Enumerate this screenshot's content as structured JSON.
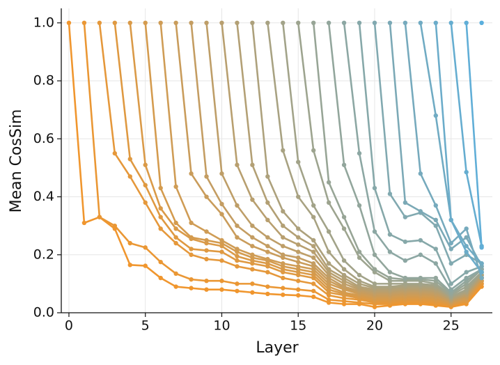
{
  "chart_data": {
    "type": "line",
    "x_label": "Layer",
    "y_label": "Mean CosSim",
    "x": [
      0,
      1,
      2,
      3,
      4,
      5,
      6,
      7,
      8,
      9,
      10,
      11,
      12,
      13,
      14,
      15,
      16,
      17,
      18,
      19,
      20,
      21,
      22,
      23,
      24,
      25,
      26,
      27
    ],
    "xlim": [
      -0.5,
      27.7
    ],
    "ylim": [
      0,
      1.05
    ],
    "xticks": [
      0,
      5,
      10,
      15,
      20,
      25
    ],
    "yticks": [
      {
        "value": 0,
        "label": "0.0"
      },
      0.2,
      0.4,
      0.6,
      0.8,
      {
        "value": 1,
        "label": "1.0"
      }
    ],
    "grid": true,
    "series": [
      {
        "color": "#f0962e",
        "values": [
          1.0,
          0.31,
          0.33,
          0.29,
          0.165,
          0.162,
          0.12,
          0.09,
          0.085,
          0.08,
          0.08,
          0.075,
          0.07,
          0.065,
          0.062,
          0.06,
          0.055,
          0.035,
          0.03,
          0.03,
          0.02,
          0.025,
          0.03,
          0.03,
          0.025,
          0.02,
          0.03,
          0.09
        ]
      },
      {
        "color": "#ea9734",
        "values": [
          null,
          1.0,
          0.33,
          0.3,
          0.24,
          0.225,
          0.175,
          0.135,
          0.115,
          0.11,
          0.11,
          0.1,
          0.1,
          0.09,
          0.085,
          0.08,
          0.075,
          0.045,
          0.04,
          0.035,
          0.03,
          0.03,
          0.035,
          0.035,
          0.03,
          0.025,
          0.035,
          0.1
        ]
      },
      {
        "color": "#e5983b",
        "values": [
          null,
          null,
          1.0,
          0.55,
          0.47,
          0.38,
          0.29,
          0.24,
          0.2,
          0.185,
          0.18,
          0.16,
          0.15,
          0.14,
          0.12,
          0.11,
          0.1,
          0.06,
          0.05,
          0.045,
          0.035,
          0.035,
          0.04,
          0.04,
          0.035,
          0.025,
          0.04,
          0.1
        ]
      },
      {
        "color": "#df9941",
        "values": [
          null,
          null,
          null,
          1.0,
          0.53,
          0.44,
          0.33,
          0.26,
          0.22,
          0.215,
          0.21,
          0.18,
          0.17,
          0.16,
          0.14,
          0.13,
          0.12,
          0.07,
          0.06,
          0.05,
          0.04,
          0.04,
          0.045,
          0.045,
          0.04,
          0.03,
          0.04,
          0.11
        ]
      },
      {
        "color": "#da9a48",
        "values": [
          null,
          null,
          null,
          null,
          1.0,
          0.51,
          0.36,
          0.29,
          0.255,
          0.24,
          0.23,
          0.195,
          0.18,
          0.17,
          0.15,
          0.14,
          0.13,
          0.08,
          0.065,
          0.055,
          0.045,
          0.045,
          0.05,
          0.05,
          0.045,
          0.03,
          0.045,
          0.11
        ]
      },
      {
        "color": "#d49b4e",
        "values": [
          null,
          null,
          null,
          null,
          null,
          1.0,
          0.43,
          0.31,
          0.26,
          0.25,
          0.24,
          0.21,
          0.19,
          0.18,
          0.16,
          0.15,
          0.14,
          0.09,
          0.07,
          0.06,
          0.05,
          0.05,
          0.055,
          0.055,
          0.05,
          0.035,
          0.05,
          0.11
        ]
      },
      {
        "color": "#cf9c55",
        "values": [
          null,
          null,
          null,
          null,
          null,
          null,
          1.0,
          0.435,
          0.31,
          0.28,
          0.25,
          0.22,
          0.2,
          0.185,
          0.17,
          0.16,
          0.15,
          0.1,
          0.08,
          0.065,
          0.055,
          0.055,
          0.06,
          0.06,
          0.055,
          0.035,
          0.05,
          0.12
        ]
      },
      {
        "color": "#c99c5b",
        "values": [
          null,
          null,
          null,
          null,
          null,
          null,
          null,
          1.0,
          0.48,
          0.4,
          0.34,
          0.26,
          0.23,
          0.21,
          0.19,
          0.175,
          0.16,
          0.11,
          0.085,
          0.07,
          0.06,
          0.06,
          0.065,
          0.065,
          0.06,
          0.04,
          0.055,
          0.12
        ]
      },
      {
        "color": "#c49d62",
        "values": [
          null,
          null,
          null,
          null,
          null,
          null,
          null,
          null,
          1.0,
          0.47,
          0.375,
          0.3,
          0.26,
          0.23,
          0.2,
          0.19,
          0.17,
          0.12,
          0.09,
          0.075,
          0.065,
          0.065,
          0.07,
          0.07,
          0.065,
          0.04,
          0.06,
          0.12
        ]
      },
      {
        "color": "#be9e68",
        "values": [
          null,
          null,
          null,
          null,
          null,
          null,
          null,
          null,
          null,
          1.0,
          0.48,
          0.37,
          0.3,
          0.26,
          0.23,
          0.21,
          0.19,
          0.13,
          0.1,
          0.08,
          0.07,
          0.07,
          0.075,
          0.075,
          0.07,
          0.045,
          0.06,
          0.12
        ]
      },
      {
        "color": "#b89f6f",
        "values": [
          null,
          null,
          null,
          null,
          null,
          null,
          null,
          null,
          null,
          null,
          1.0,
          0.51,
          0.39,
          0.32,
          0.26,
          0.235,
          0.21,
          0.14,
          0.11,
          0.085,
          0.075,
          0.075,
          0.08,
          0.08,
          0.075,
          0.045,
          0.065,
          0.13
        ]
      },
      {
        "color": "#b3a075",
        "values": [
          null,
          null,
          null,
          null,
          null,
          null,
          null,
          null,
          null,
          null,
          null,
          1.0,
          0.51,
          0.38,
          0.3,
          0.26,
          0.23,
          0.15,
          0.12,
          0.09,
          0.08,
          0.08,
          0.085,
          0.085,
          0.08,
          0.05,
          0.07,
          0.13
        ]
      },
      {
        "color": "#ada17c",
        "values": [
          null,
          null,
          null,
          null,
          null,
          null,
          null,
          null,
          null,
          null,
          null,
          null,
          1.0,
          0.47,
          0.35,
          0.29,
          0.25,
          0.17,
          0.13,
          0.1,
          0.085,
          0.085,
          0.09,
          0.09,
          0.085,
          0.05,
          0.07,
          0.13
        ]
      },
      {
        "color": "#a8a282",
        "values": [
          null,
          null,
          null,
          null,
          null,
          null,
          null,
          null,
          null,
          null,
          null,
          null,
          null,
          1.0,
          0.56,
          0.4,
          0.33,
          0.21,
          0.15,
          0.11,
          0.09,
          0.09,
          0.095,
          0.095,
          0.09,
          0.055,
          0.075,
          0.14
        ]
      },
      {
        "color": "#a2a389",
        "values": [
          null,
          null,
          null,
          null,
          null,
          null,
          null,
          null,
          null,
          null,
          null,
          null,
          null,
          null,
          1.0,
          0.52,
          0.37,
          0.28,
          0.18,
          0.13,
          0.1,
          0.1,
          0.1,
          0.1,
          0.095,
          0.055,
          0.08,
          0.14
        ]
      },
      {
        "color": "#9da48f",
        "values": [
          null,
          null,
          null,
          null,
          null,
          null,
          null,
          null,
          null,
          null,
          null,
          null,
          null,
          null,
          null,
          1.0,
          0.56,
          0.38,
          0.29,
          0.19,
          0.14,
          0.11,
          0.11,
          0.11,
          0.1,
          0.06,
          0.09,
          0.14
        ]
      },
      {
        "color": "#97a596",
        "values": [
          null,
          null,
          null,
          null,
          null,
          null,
          null,
          null,
          null,
          null,
          null,
          null,
          null,
          null,
          null,
          null,
          1.0,
          0.45,
          0.33,
          0.21,
          0.15,
          0.12,
          0.115,
          0.115,
          0.11,
          0.065,
          0.1,
          0.15
        ]
      },
      {
        "color": "#92a69c",
        "values": [
          null,
          null,
          null,
          null,
          null,
          null,
          null,
          null,
          null,
          null,
          null,
          null,
          null,
          null,
          null,
          null,
          null,
          1.0,
          0.51,
          0.37,
          0.2,
          0.14,
          0.12,
          0.12,
          0.12,
          0.07,
          0.11,
          0.15
        ]
      },
      {
        "color": "#8ca7a3",
        "values": [
          null,
          null,
          null,
          null,
          null,
          null,
          null,
          null,
          null,
          null,
          null,
          null,
          null,
          null,
          null,
          null,
          null,
          null,
          1.0,
          0.55,
          0.28,
          0.21,
          0.18,
          0.2,
          0.17,
          0.08,
          0.12,
          0.15
        ]
      },
      {
        "color": "#86a8a9",
        "values": [
          null,
          null,
          null,
          null,
          null,
          null,
          null,
          null,
          null,
          null,
          null,
          null,
          null,
          null,
          null,
          null,
          null,
          null,
          null,
          1.0,
          0.43,
          0.27,
          0.245,
          0.25,
          0.22,
          0.1,
          0.14,
          0.16
        ]
      },
      {
        "color": "#81a9b0",
        "values": [
          null,
          null,
          null,
          null,
          null,
          null,
          null,
          null,
          null,
          null,
          null,
          null,
          null,
          null,
          null,
          null,
          null,
          null,
          null,
          null,
          1.0,
          0.41,
          0.33,
          0.345,
          0.3,
          0.17,
          0.2,
          0.17
        ]
      },
      {
        "color": "#7ba9b6",
        "values": [
          null,
          null,
          null,
          null,
          null,
          null,
          null,
          null,
          null,
          null,
          null,
          null,
          null,
          null,
          null,
          null,
          null,
          null,
          null,
          null,
          null,
          1.0,
          0.38,
          0.35,
          0.32,
          0.22,
          0.26,
          0.16
        ]
      },
      {
        "color": "#76aabd",
        "values": [
          null,
          null,
          null,
          null,
          null,
          null,
          null,
          null,
          null,
          null,
          null,
          null,
          null,
          null,
          null,
          null,
          null,
          null,
          null,
          null,
          null,
          null,
          1.0,
          0.48,
          0.37,
          0.24,
          0.29,
          0.12
        ]
      },
      {
        "color": "#70abc3",
        "values": [
          null,
          null,
          null,
          null,
          null,
          null,
          null,
          null,
          null,
          null,
          null,
          null,
          null,
          null,
          null,
          null,
          null,
          null,
          null,
          null,
          null,
          null,
          null,
          1.0,
          0.68,
          0.32,
          0.23,
          0.17
        ]
      },
      {
        "color": "#6bacca",
        "values": [
          null,
          null,
          null,
          null,
          null,
          null,
          null,
          null,
          null,
          null,
          null,
          null,
          null,
          null,
          null,
          null,
          null,
          null,
          null,
          null,
          null,
          null,
          null,
          null,
          1.0,
          0.32,
          0.21,
          0.14
        ]
      },
      {
        "color": "#65add0",
        "values": [
          null,
          null,
          null,
          null,
          null,
          null,
          null,
          null,
          null,
          null,
          null,
          null,
          null,
          null,
          null,
          null,
          null,
          null,
          null,
          null,
          null,
          null,
          null,
          null,
          null,
          1.0,
          0.485,
          0.23
        ]
      },
      {
        "color": "#60aed7",
        "values": [
          null,
          null,
          null,
          null,
          null,
          null,
          null,
          null,
          null,
          null,
          null,
          null,
          null,
          null,
          null,
          null,
          null,
          null,
          null,
          null,
          null,
          null,
          null,
          null,
          null,
          null,
          1.0,
          0.225
        ]
      },
      {
        "color": "#5aafdd",
        "values": [
          null,
          null,
          null,
          null,
          null,
          null,
          null,
          null,
          null,
          null,
          null,
          null,
          null,
          null,
          null,
          null,
          null,
          null,
          null,
          null,
          null,
          null,
          null,
          null,
          null,
          null,
          null,
          1.0
        ]
      }
    ]
  }
}
